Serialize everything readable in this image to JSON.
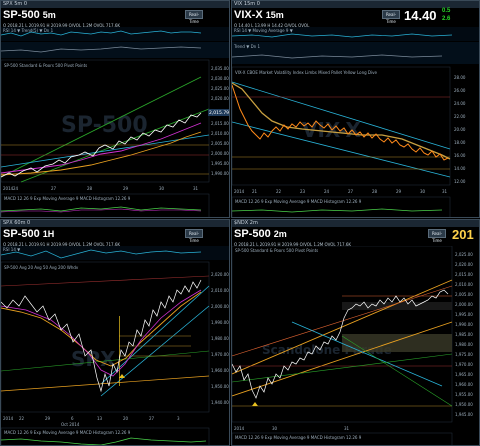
{
  "panes": {
    "tl": {
      "title": "SPX 5m 0",
      "symbol": "SP-500",
      "interval": "5m",
      "realtime": "Real-Time",
      "ohlc": "O 2018.21  L 2019.91  H 2019.99  O/VOL 1.2M  OVOL 717.6K",
      "pane2": "RSI 14 ▼  Trend(5) ▼  Dn 1",
      "legend": "SP-500 Standard & Poors 500  Pivot Points",
      "price_labels": [
        "2,035.00",
        "2,030.00",
        "2,025.00",
        "2,020.00",
        "2,015.00",
        "2,010.00",
        "2,005.00",
        "2,000.00",
        "1,995.00",
        "1,990.00",
        "1,985.00",
        "1,980.00"
      ],
      "dates": [
        "24",
        "27",
        "28",
        "29",
        "30",
        "31"
      ],
      "year": "2014",
      "indicator": "MACD 12.26 9  Exp Moving Average 9  MACD Histogram 12.26 9",
      "last_price": "2,015.79"
    },
    "tr": {
      "title": "VIX 15m 0",
      "symbol": "VIX-X",
      "interval": "15m",
      "realtime": "Real-Time",
      "price": "14.40",
      "change": "0.5",
      "change2": "2.6",
      "ohlc": "O 14.40  L 13.99  H 14.42  O/VOL  OVOL",
      "pane2": "RSI 14 ▼  Moving Average 9 ▼",
      "pane3": "Trend ▼  Dn 1",
      "legend": "VIX-X CBOE Market Volatility Index  Limbs  Mixed Pallet  Yellow  Long Dive",
      "price_labels": [
        "28.00",
        "26.00",
        "24.00",
        "22.00",
        "20.00",
        "18.00",
        "16.00",
        "14.00",
        "12.00"
      ],
      "dates": [
        "21",
        "22",
        "23",
        "24",
        "27",
        "28",
        "29",
        "30",
        "31"
      ],
      "year": "2014",
      "indicator": "MACD 12.26 9  Exp Moving Average 9  MACD Histogram 12.26 9"
    },
    "bl": {
      "title": "SPX 60m 0",
      "symbol": "SP-500",
      "interval": "1H",
      "realtime": "Real-Time",
      "ohlc": "O 2018.21  L 2019.91  H 2019.99  O/VOL 1.2M  OVOL 717.6K",
      "pane2": "RSI 14 ▼",
      "legend": "SP-500  Avg 20  Avg 50  Avg 200  Whdv",
      "price_labels": [
        "2,020.00",
        "2,010.00",
        "2,000.00",
        "1,990.00",
        "1,980.00",
        "1,970.00",
        "1,960.00",
        "1,950.00",
        "1,940.00",
        "1,930.00",
        "1,920.00",
        "1,910.00",
        "1,900.00",
        "1,890.00",
        "1,880.00",
        "1,870.00"
      ],
      "dates": [
        "22",
        "29",
        "6",
        "13",
        "20",
        "27",
        "3"
      ],
      "months": [
        "2014",
        "Oct 2014"
      ],
      "indicator": "MACD 12.26 9  Exp Moving Average 9  MACD Histogram 12.26 9",
      "watermark": "SPX"
    },
    "br": {
      "title": "$NDX 2m",
      "symbol": "SP-500",
      "interval": "2m",
      "realtime": "Real-Time",
      "price": "201",
      "ohlc": "O 2018.21  L 2019.91  H 2019.99  O/VOL 1.2M  OVOL 717.6K",
      "legend": "SP-500 Standard & Poors 500  Pivot Points",
      "price_labels": [
        "2,025.00",
        "2,020.00",
        "2,015.00",
        "2,010.00",
        "2,005.00",
        "2,000.00",
        "1,995.00",
        "1,990.00",
        "1,985.00",
        "1,980.00",
        "1,975.00",
        "1,970.00",
        "1,965.00",
        "1,960.00",
        "1,955.00",
        "1,950.00",
        "1,945.00",
        "1,940.00"
      ],
      "dates": [
        "30",
        "31"
      ],
      "year": "2014",
      "indicator": "MACD 12.26 9  Exp Moving Average 9  MACD Histogram 12.26 9",
      "watermark": "Scandolone Parade"
    }
  },
  "colors": {
    "background": "#000000",
    "price_line": "#ffffff",
    "ma_magenta": "#d030d0",
    "ma_orange": "#e8a020",
    "trend_green": "#2aa52a",
    "channel_cyan": "#29b3d8",
    "vix_orange": "#ff8a1a",
    "macd_green": "#4ad04a"
  }
}
